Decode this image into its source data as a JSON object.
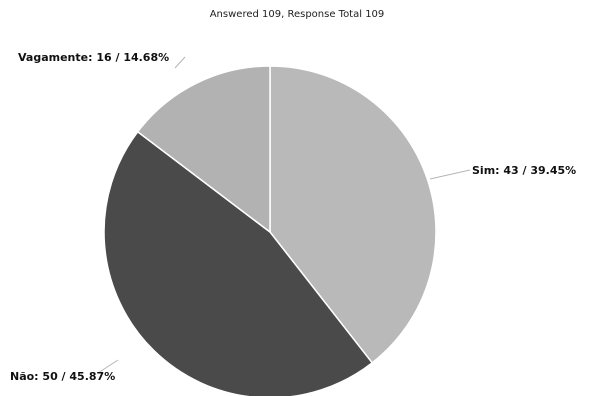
{
  "chart_data": {
    "type": "pie",
    "title": "Answered 109, Response Total 109",
    "slices": [
      {
        "label": "Sim",
        "value": 43,
        "percent": "39.45%",
        "display": "Sim: 43 / 39.45%",
        "color": "#b9b9b9"
      },
      {
        "label": "Não",
        "value": 50,
        "percent": "45.87%",
        "display": "Não: 50 / 45.87%",
        "color": "#4a4a4a"
      },
      {
        "label": "Vagamente",
        "value": 16,
        "percent": "14.68%",
        "display": "Vagamente: 16 / 14.68%",
        "color": "#b2b2b2"
      }
    ]
  }
}
